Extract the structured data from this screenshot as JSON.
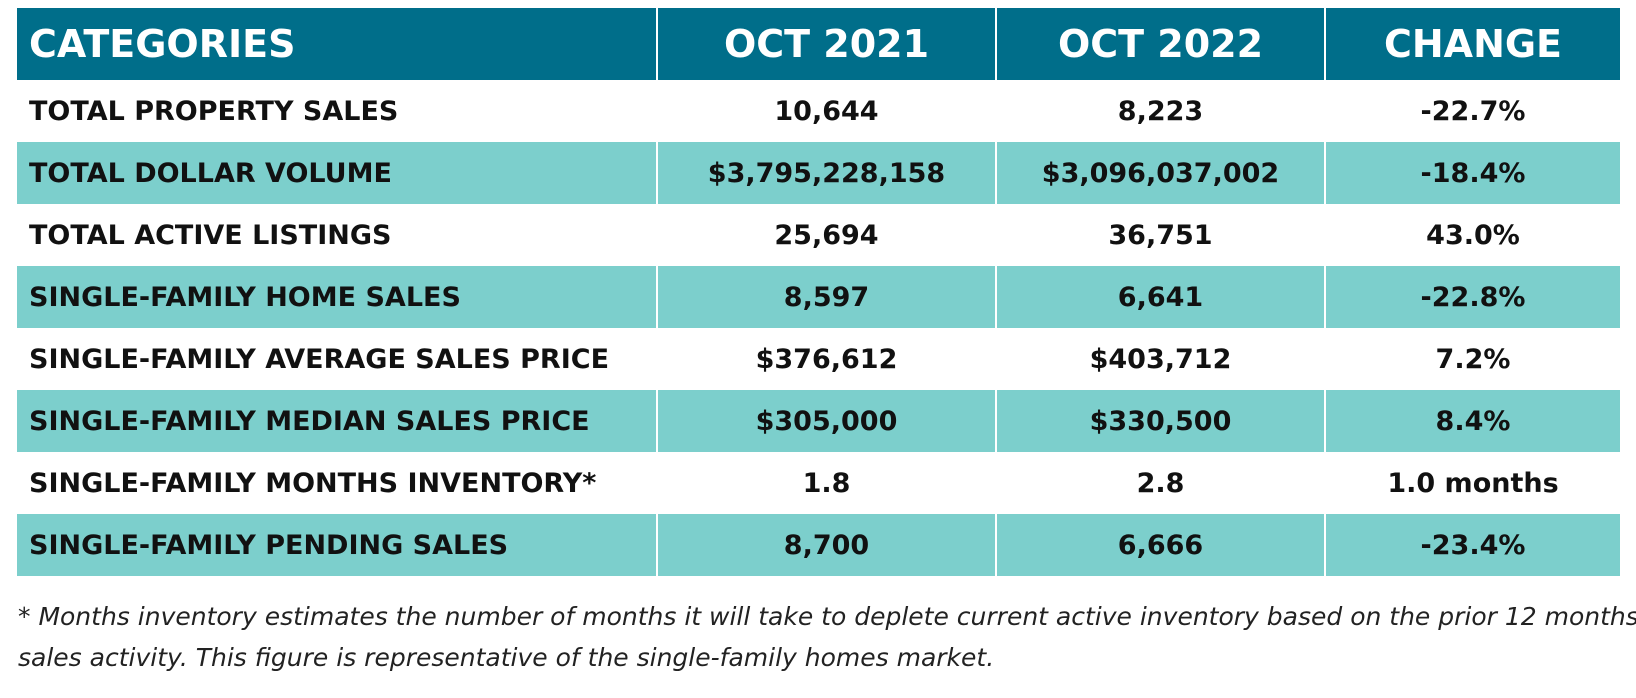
{
  "header": {
    "columns": [
      "CATEGORIES",
      "OCT 2021",
      "OCT 2022",
      "CHANGE"
    ]
  },
  "table": {
    "rows": [
      [
        "TOTAL PROPERTY SALES",
        "10,644",
        "8,223",
        "-22.7%"
      ],
      [
        "TOTAL DOLLAR VOLUME",
        "$3,795,228,158",
        "$3,096,037,002",
        "-18.4%"
      ],
      [
        "TOTAL ACTIVE LISTINGS",
        "25,694",
        "36,751",
        "43.0%"
      ],
      [
        "SINGLE-FAMILY HOME SALES",
        "8,597",
        "6,641",
        "-22.8%"
      ],
      [
        "SINGLE-FAMILY AVERAGE SALES PRICE",
        "$376,612",
        "$403,712",
        "7.2%"
      ],
      [
        "SINGLE-FAMILY MEDIAN SALES PRICE",
        "$305,000",
        "$330,500",
        "8.4%"
      ],
      [
        "SINGLE-FAMILY MONTHS INVENTORY*",
        "1.8",
        "2.8",
        "1.0 months"
      ],
      [
        "SINGLE-FAMILY PENDING SALES",
        "8,700",
        "6,666",
        "-23.4%"
      ]
    ]
  },
  "footnote": {
    "lines": [
      "* Months inventory estimates the number of months it will take to deplete current active inventory based on the prior 12 months",
      "sales activity. This figure is representative of the single-family homes market."
    ]
  }
}
